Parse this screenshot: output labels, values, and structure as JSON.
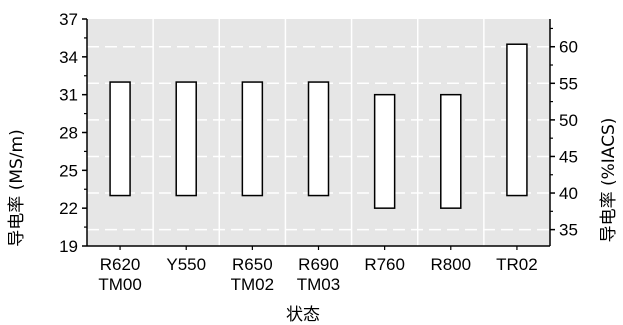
{
  "chart_data": {
    "type": "bar",
    "subtype": "floating-range",
    "title": "",
    "xlabel": "状态",
    "ylabel": "导电率 (MS/m)",
    "y2label": "导电率 (%IACS)",
    "categories": [
      [
        "R620",
        "TM00"
      ],
      [
        "Y550"
      ],
      [
        "R650",
        "TM02"
      ],
      [
        "R690",
        "TM03"
      ],
      [
        "R760"
      ],
      [
        "R800"
      ],
      [
        "TR02"
      ]
    ],
    "series": [
      {
        "low": [
          23,
          23,
          23,
          23,
          22,
          22,
          23
        ],
        "high": [
          32,
          32,
          32,
          32,
          31,
          31,
          35
        ]
      }
    ],
    "ylim": [
      19,
      37
    ],
    "yticks": [
      19,
      22,
      25,
      28,
      31,
      34,
      37
    ],
    "y2lim": [
      32.76,
      63.79
    ],
    "y2ticks": [
      35,
      40,
      45,
      50,
      55,
      60
    ],
    "grid": true,
    "colors": {
      "plot_background": "#e6e6e6",
      "bar_fill": "#ffffff",
      "bar_stroke": "#000000",
      "grid": "#ffffff"
    }
  }
}
